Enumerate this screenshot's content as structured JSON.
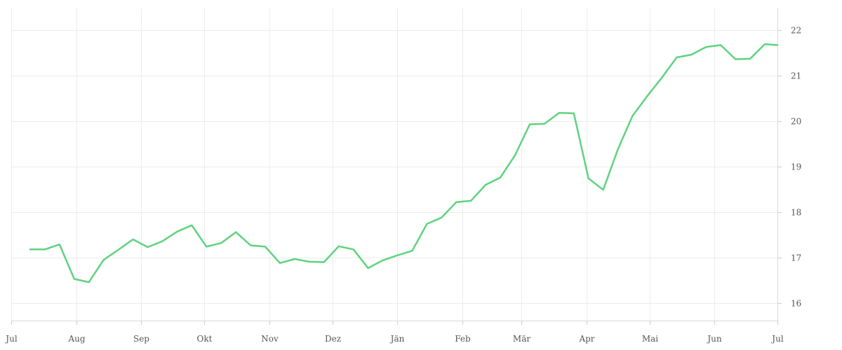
{
  "chart_data": {
    "type": "line",
    "x_ticks": [
      "Jul",
      "Aug",
      "Sep",
      "Okt",
      "Nov",
      "Dez",
      "Jän",
      "Feb",
      "Mär",
      "Apr",
      "Mai",
      "Jun",
      "Jul"
    ],
    "y_ticks": [
      16,
      17,
      18,
      19,
      20,
      21,
      22
    ],
    "ylim": [
      15.6,
      22.4
    ],
    "y_axis_position": "right",
    "grid": true,
    "line_color": "#5ed37e",
    "series": [
      {
        "x": [
          "2022-07-10",
          "2022-07-17",
          "2022-07-24",
          "2022-07-31",
          "2022-08-07",
          "2022-08-14",
          "2022-08-21",
          "2022-08-28",
          "2022-09-04",
          "2022-09-11",
          "2022-09-18",
          "2022-09-25",
          "2022-10-02",
          "2022-10-09",
          "2022-10-16",
          "2022-10-23",
          "2022-10-30",
          "2022-11-06",
          "2022-11-13",
          "2022-11-20",
          "2022-11-27",
          "2022-12-04",
          "2022-12-11",
          "2022-12-18",
          "2022-12-25",
          "2023-01-01",
          "2023-01-08",
          "2023-01-15",
          "2023-01-22",
          "2023-01-29",
          "2023-02-05",
          "2023-02-12",
          "2023-02-19",
          "2023-02-26",
          "2023-03-05",
          "2023-03-12",
          "2023-03-19",
          "2023-03-26",
          "2023-04-02",
          "2023-04-09",
          "2023-04-16",
          "2023-04-23",
          "2023-04-30",
          "2023-05-07",
          "2023-05-14",
          "2023-05-21",
          "2023-05-28",
          "2023-06-04",
          "2023-06-11",
          "2023-06-18",
          "2023-06-25",
          "2023-07-01"
        ],
        "values": [
          17.18,
          17.18,
          17.29,
          16.53,
          16.46,
          16.95,
          17.17,
          17.4,
          17.23,
          17.36,
          17.57,
          17.71,
          17.24,
          17.32,
          17.56,
          17.27,
          17.24,
          16.88,
          16.97,
          16.91,
          16.9,
          17.25,
          17.18,
          16.77,
          16.94,
          17.05,
          17.15,
          17.74,
          17.88,
          18.22,
          18.25,
          18.6,
          18.76,
          19.25,
          19.93,
          19.94,
          20.18,
          20.17,
          18.74,
          18.49,
          19.38,
          20.12,
          20.55,
          20.96,
          21.4,
          21.46,
          21.63,
          21.67,
          21.36,
          21.37,
          21.69,
          21.67
        ]
      }
    ]
  }
}
